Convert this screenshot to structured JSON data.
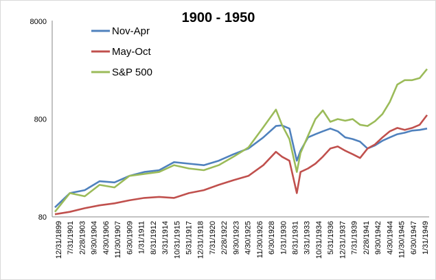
{
  "chart_data": {
    "type": "line",
    "title": "1900 - 1950",
    "xlabel": "",
    "ylabel": "",
    "y_scale": "log",
    "ylim": [
      80,
      8000
    ],
    "y_ticks": [
      "8000",
      "800",
      "80"
    ],
    "x_tick_labels": [
      "12/31/1899",
      "7/31/1901",
      "2/28/1903",
      "9/30/1904",
      "4/30/1906",
      "11/30/1907",
      "6/30/1909",
      "1/31/1911",
      "8/31/1912",
      "3/31/1914",
      "10/31/1915",
      "5/31/1917",
      "12/31/1918",
      "7/31/1920",
      "2/28/1922",
      "9/30/1923",
      "4/30/1925",
      "11/30/1926",
      "6/30/1928",
      "1/31/1930",
      "8/31/1931",
      "3/31/1933",
      "10/31/1934",
      "5/31/1936",
      "12/31/1937",
      "7/31/1939",
      "2/28/1941",
      "9/30/1942",
      "4/30/1944",
      "11/30/1945",
      "6/30/1947",
      "1/31/1949"
    ],
    "x": [
      1900.0,
      1902.0,
      1904.0,
      1906.0,
      1908.0,
      1910.0,
      1912.0,
      1914.0,
      1916.0,
      1918.0,
      1920.0,
      1922.0,
      1924.0,
      1926.0,
      1928.0,
      1929.7,
      1930.5,
      1931.5,
      1932.5,
      1933.0,
      1934.0,
      1935.0,
      1936.0,
      1937.0,
      1938.0,
      1939.0,
      1940.0,
      1941.0,
      1942.0,
      1943.0,
      1944.0,
      1945.0,
      1946.0,
      1947.0,
      1948.0,
      1949.0,
      1950.0
    ],
    "series": [
      {
        "name": "Nov-Apr",
        "color": "#4f81bd",
        "values": [
          100,
          140,
          150,
          185,
          180,
          210,
          230,
          240,
          290,
          280,
          270,
          300,
          350,
          400,
          520,
          680,
          690,
          640,
          300,
          380,
          520,
          560,
          600,
          640,
          600,
          520,
          500,
          470,
          400,
          430,
          480,
          520,
          560,
          580,
          610,
          620,
          640
        ]
      },
      {
        "name": "May-Oct",
        "color": "#c0504d",
        "values": [
          85,
          90,
          98,
          105,
          110,
          118,
          125,
          128,
          125,
          140,
          150,
          170,
          190,
          210,
          270,
          370,
          330,
          300,
          140,
          230,
          250,
          280,
          330,
          400,
          420,
          380,
          350,
          320,
          400,
          440,
          520,
          600,
          650,
          620,
          650,
          700,
          880
        ]
      },
      {
        "name": "S&P 500",
        "color": "#9bbb59",
        "values": [
          90,
          140,
          130,
          170,
          160,
          210,
          220,
          230,
          270,
          250,
          240,
          270,
          330,
          410,
          660,
          1000,
          700,
          500,
          230,
          360,
          540,
          800,
          980,
          750,
          800,
          770,
          800,
          700,
          680,
          760,
          900,
          1200,
          1800,
          2000,
          2000,
          2100,
          2600
        ]
      }
    ],
    "legend_position": "top-left",
    "grid": false
  }
}
